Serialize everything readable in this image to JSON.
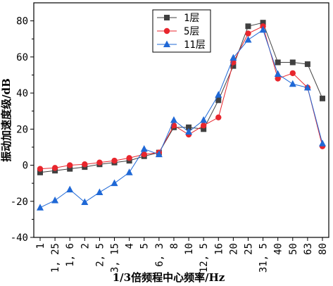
{
  "chart_data": {
    "type": "line",
    "xlabel": "1/3倍频程中心频率/Hz",
    "ylabel": "振动加速度级/dB",
    "ylim": [
      -40,
      90
    ],
    "yticks": [
      -40,
      -20,
      0,
      20,
      40,
      60,
      80
    ],
    "categories": [
      "1",
      "1.25",
      "1.6",
      "2",
      "2.5",
      "3.15",
      "4",
      "5",
      "6.3",
      "8",
      "10",
      "12.5",
      "16",
      "20",
      "25",
      "31.5",
      "40",
      "50",
      "63",
      "80"
    ],
    "tick_labels": [
      "1",
      "1, 25",
      "1, 6",
      "2",
      "2, 5",
      "3, 15",
      "4",
      "5",
      "6, 3",
      "8",
      "10",
      "12, 5",
      "16",
      "20",
      "25",
      "31, 5",
      "40",
      "50",
      "63",
      "80"
    ],
    "legend_position": "top-center",
    "grid": false,
    "series": [
      {
        "name": "1层",
        "color": "#404040",
        "marker": "square",
        "values": [
          -4,
          -3,
          -2,
          -1,
          0.5,
          1.5,
          2.5,
          5,
          7,
          21,
          21,
          20,
          36,
          55,
          77,
          79,
          57,
          57,
          56,
          37
        ]
      },
      {
        "name": "5层",
        "color": "#e8262d",
        "marker": "circle",
        "values": [
          -2,
          -1.5,
          0,
          0.5,
          1.5,
          2.5,
          4,
          6,
          7,
          22,
          17,
          22,
          26.5,
          57,
          73,
          77,
          48,
          51,
          43,
          10.5
        ]
      },
      {
        "name": "11层",
        "color": "#1f68d6",
        "marker": "triangle",
        "values": [
          -23.5,
          -19.5,
          -13.5,
          -20.5,
          -15,
          -10,
          -4,
          9,
          6,
          25,
          18.5,
          25,
          39,
          59.5,
          69.5,
          75,
          50.5,
          45,
          43,
          12
        ]
      }
    ]
  }
}
